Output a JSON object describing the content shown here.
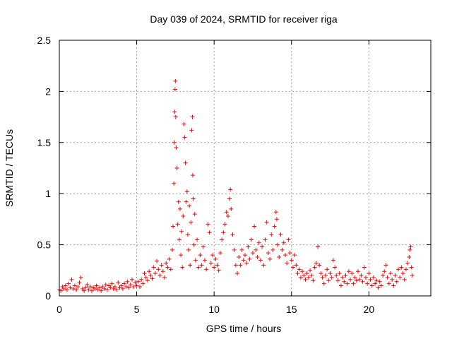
{
  "chart_data": {
    "type": "scatter",
    "title": "Day 039 of 2024, SRMTID for receiver riga",
    "xlabel": "GPS time / hours",
    "ylabel": "SRMTID / TECUs",
    "xlim": [
      0,
      24
    ],
    "ylim": [
      0,
      2.5
    ],
    "xticks": [
      0,
      5,
      10,
      15,
      20
    ],
    "xtick_labels": [
      "0",
      "5",
      "10",
      "15",
      "20"
    ],
    "yticks": [
      0,
      0.5,
      1,
      1.5,
      2,
      2.5
    ],
    "ytick_labels": [
      "0",
      "0.5",
      "1",
      "1.5",
      "2",
      "2.5"
    ],
    "grid": true,
    "marker": "+",
    "series": [
      {
        "name": "SRMTID",
        "color": "#ff0000",
        "points": [
          [
            0.0,
            0.06
          ],
          [
            0.1,
            0.05
          ],
          [
            0.2,
            0.09
          ],
          [
            0.3,
            0.07
          ],
          [
            0.4,
            0.1
          ],
          [
            0.5,
            0.06
          ],
          [
            0.6,
            0.12
          ],
          [
            0.7,
            0.08
          ],
          [
            0.8,
            0.16
          ],
          [
            0.9,
            0.07
          ],
          [
            1.0,
            0.1
          ],
          [
            1.1,
            0.06
          ],
          [
            1.2,
            0.09
          ],
          [
            1.3,
            0.13
          ],
          [
            1.4,
            0.18
          ],
          [
            1.5,
            0.07
          ],
          [
            1.6,
            0.05
          ],
          [
            1.7,
            0.08
          ],
          [
            1.8,
            0.11
          ],
          [
            1.9,
            0.06
          ],
          [
            2.0,
            0.09
          ],
          [
            2.1,
            0.05
          ],
          [
            2.2,
            0.08
          ],
          [
            2.3,
            0.07
          ],
          [
            2.4,
            0.1
          ],
          [
            2.5,
            0.06
          ],
          [
            2.6,
            0.08
          ],
          [
            2.7,
            0.05
          ],
          [
            2.8,
            0.09
          ],
          [
            2.9,
            0.07
          ],
          [
            3.0,
            0.11
          ],
          [
            3.1,
            0.06
          ],
          [
            3.2,
            0.1
          ],
          [
            3.3,
            0.08
          ],
          [
            3.4,
            0.12
          ],
          [
            3.5,
            0.07
          ],
          [
            3.6,
            0.09
          ],
          [
            3.7,
            0.06
          ],
          [
            3.8,
            0.13
          ],
          [
            3.9,
            0.08
          ],
          [
            4.0,
            0.1
          ],
          [
            4.1,
            0.07
          ],
          [
            4.2,
            0.12
          ],
          [
            4.3,
            0.09
          ],
          [
            4.4,
            0.14
          ],
          [
            4.5,
            0.08
          ],
          [
            4.6,
            0.11
          ],
          [
            4.7,
            0.16
          ],
          [
            4.8,
            0.09
          ],
          [
            4.9,
            0.13
          ],
          [
            5.0,
            0.1
          ],
          [
            5.1,
            0.14
          ],
          [
            5.2,
            0.09
          ],
          [
            5.3,
            0.16
          ],
          [
            5.4,
            0.12
          ],
          [
            5.5,
            0.22
          ],
          [
            5.6,
            0.18
          ],
          [
            5.7,
            0.15
          ],
          [
            5.8,
            0.24
          ],
          [
            5.9,
            0.2
          ],
          [
            6.0,
            0.17
          ],
          [
            6.1,
            0.28
          ],
          [
            6.2,
            0.22
          ],
          [
            6.3,
            0.34
          ],
          [
            6.4,
            0.26
          ],
          [
            6.5,
            0.2
          ],
          [
            6.6,
            0.3
          ],
          [
            6.7,
            0.24
          ],
          [
            6.8,
            0.18
          ],
          [
            6.9,
            0.32
          ],
          [
            7.0,
            0.28
          ],
          [
            7.1,
            0.36
          ],
          [
            7.2,
            0.26
          ],
          [
            7.3,
            0.45
          ],
          [
            7.35,
            0.68
          ],
          [
            7.4,
            1.1
          ],
          [
            7.42,
            1.5
          ],
          [
            7.45,
            1.8
          ],
          [
            7.48,
            2.02
          ],
          [
            7.5,
            2.1
          ],
          [
            7.52,
            1.75
          ],
          [
            7.55,
            1.45
          ],
          [
            7.6,
            1.25
          ],
          [
            7.65,
            0.7
          ],
          [
            7.7,
            0.92
          ],
          [
            7.75,
            0.55
          ],
          [
            7.8,
            0.85
          ],
          [
            7.85,
            0.4
          ],
          [
            7.9,
            0.63
          ],
          [
            7.95,
            0.28
          ],
          [
            8.0,
            0.78
          ],
          [
            8.05,
            1.68
          ],
          [
            8.1,
            1.55
          ],
          [
            8.15,
            1.3
          ],
          [
            8.2,
            0.92
          ],
          [
            8.25,
            1.02
          ],
          [
            8.3,
            0.6
          ],
          [
            8.35,
            0.45
          ],
          [
            8.4,
            0.88
          ],
          [
            8.45,
            0.3
          ],
          [
            8.5,
            0.72
          ],
          [
            8.55,
            1.62
          ],
          [
            8.6,
            1.75
          ],
          [
            8.62,
            1.18
          ],
          [
            8.65,
            0.95
          ],
          [
            8.7,
            0.5
          ],
          [
            8.75,
            0.8
          ],
          [
            8.8,
            0.35
          ],
          [
            8.9,
            0.55
          ],
          [
            9.0,
            0.28
          ],
          [
            9.1,
            0.4
          ],
          [
            9.2,
            0.3
          ],
          [
            9.3,
            0.48
          ],
          [
            9.4,
            0.35
          ],
          [
            9.5,
            0.26
          ],
          [
            9.6,
            0.7
          ],
          [
            9.7,
            0.62
          ],
          [
            9.8,
            0.32
          ],
          [
            9.9,
            0.4
          ],
          [
            10.0,
            0.28
          ],
          [
            10.1,
            0.36
          ],
          [
            10.2,
            0.3
          ],
          [
            10.3,
            0.25
          ],
          [
            10.4,
            0.42
          ],
          [
            10.5,
            0.55
          ],
          [
            10.6,
            0.62
          ],
          [
            10.7,
            0.7
          ],
          [
            10.8,
            0.82
          ],
          [
            10.9,
            0.78
          ],
          [
            11.0,
            0.95
          ],
          [
            11.05,
            1.04
          ],
          [
            11.1,
            0.85
          ],
          [
            11.2,
            0.6
          ],
          [
            11.3,
            0.45
          ],
          [
            11.4,
            0.3
          ],
          [
            11.5,
            0.22
          ],
          [
            11.6,
            0.38
          ],
          [
            11.7,
            0.3
          ],
          [
            11.8,
            0.45
          ],
          [
            11.9,
            0.35
          ],
          [
            12.0,
            0.4
          ],
          [
            12.1,
            0.32
          ],
          [
            12.2,
            0.48
          ],
          [
            12.3,
            0.36
          ],
          [
            12.4,
            0.55
          ],
          [
            12.5,
            0.42
          ],
          [
            12.6,
            0.68
          ],
          [
            12.7,
            0.45
          ],
          [
            12.8,
            0.38
          ],
          [
            12.9,
            0.52
          ],
          [
            13.0,
            0.35
          ],
          [
            13.1,
            0.48
          ],
          [
            13.2,
            0.3
          ],
          [
            13.3,
            0.55
          ],
          [
            13.4,
            0.72
          ],
          [
            13.5,
            0.42
          ],
          [
            13.6,
            0.36
          ],
          [
            13.7,
            0.6
          ],
          [
            13.8,
            0.45
          ],
          [
            13.9,
            0.68
          ],
          [
            14.0,
            0.82
          ],
          [
            14.05,
            0.75
          ],
          [
            14.1,
            0.5
          ],
          [
            14.2,
            0.38
          ],
          [
            14.3,
            0.6
          ],
          [
            14.4,
            0.45
          ],
          [
            14.5,
            0.52
          ],
          [
            14.6,
            0.4
          ],
          [
            14.7,
            0.32
          ],
          [
            14.8,
            0.55
          ],
          [
            14.9,
            0.42
          ],
          [
            15.0,
            0.35
          ],
          [
            15.1,
            0.28
          ],
          [
            15.2,
            0.4
          ],
          [
            15.3,
            0.3
          ],
          [
            15.4,
            0.22
          ],
          [
            15.5,
            0.26
          ],
          [
            15.6,
            0.18
          ],
          [
            15.7,
            0.24
          ],
          [
            15.8,
            0.2
          ],
          [
            15.9,
            0.16
          ],
          [
            16.0,
            0.22
          ],
          [
            16.1,
            0.18
          ],
          [
            16.2,
            0.25
          ],
          [
            16.3,
            0.2
          ],
          [
            16.4,
            0.15
          ],
          [
            16.5,
            0.28
          ],
          [
            16.6,
            0.32
          ],
          [
            16.7,
            0.48
          ],
          [
            16.8,
            0.3
          ],
          [
            16.9,
            0.22
          ],
          [
            17.0,
            0.18
          ],
          [
            17.1,
            0.12
          ],
          [
            17.2,
            0.2
          ],
          [
            17.3,
            0.26
          ],
          [
            17.4,
            0.15
          ],
          [
            17.5,
            0.22
          ],
          [
            17.6,
            0.18
          ],
          [
            17.7,
            0.35
          ],
          [
            17.8,
            0.28
          ],
          [
            17.9,
            0.2
          ],
          [
            18.0,
            0.15
          ],
          [
            18.1,
            0.22
          ],
          [
            18.2,
            0.1
          ],
          [
            18.3,
            0.18
          ],
          [
            18.4,
            0.14
          ],
          [
            18.5,
            0.2
          ],
          [
            18.6,
            0.12
          ],
          [
            18.7,
            0.24
          ],
          [
            18.8,
            0.16
          ],
          [
            18.9,
            0.22
          ],
          [
            19.0,
            0.12
          ],
          [
            19.1,
            0.18
          ],
          [
            19.2,
            0.15
          ],
          [
            19.3,
            0.24
          ],
          [
            19.4,
            0.16
          ],
          [
            19.5,
            0.2
          ],
          [
            19.6,
            0.14
          ],
          [
            19.7,
            0.28
          ],
          [
            19.8,
            0.18
          ],
          [
            19.9,
            0.12
          ],
          [
            20.0,
            0.22
          ],
          [
            20.1,
            0.16
          ],
          [
            20.2,
            0.1
          ],
          [
            20.3,
            0.18
          ],
          [
            20.4,
            0.12
          ],
          [
            20.5,
            0.15
          ],
          [
            20.6,
            0.08
          ],
          [
            20.7,
            0.14
          ],
          [
            20.8,
            0.1
          ],
          [
            20.9,
            0.2
          ],
          [
            21.0,
            0.24
          ],
          [
            21.1,
            0.3
          ],
          [
            21.2,
            0.18
          ],
          [
            21.3,
            0.12
          ],
          [
            21.4,
            0.22
          ],
          [
            21.5,
            0.16
          ],
          [
            21.6,
            0.1
          ],
          [
            21.7,
            0.2
          ],
          [
            21.8,
            0.14
          ],
          [
            21.9,
            0.26
          ],
          [
            22.0,
            0.18
          ],
          [
            22.1,
            0.28
          ],
          [
            22.2,
            0.22
          ],
          [
            22.3,
            0.16
          ],
          [
            22.4,
            0.26
          ],
          [
            22.5,
            0.32
          ],
          [
            22.6,
            0.38
          ],
          [
            22.65,
            0.45
          ],
          [
            22.7,
            0.48
          ],
          [
            22.75,
            0.28
          ],
          [
            22.8,
            0.2
          ]
        ]
      }
    ]
  }
}
